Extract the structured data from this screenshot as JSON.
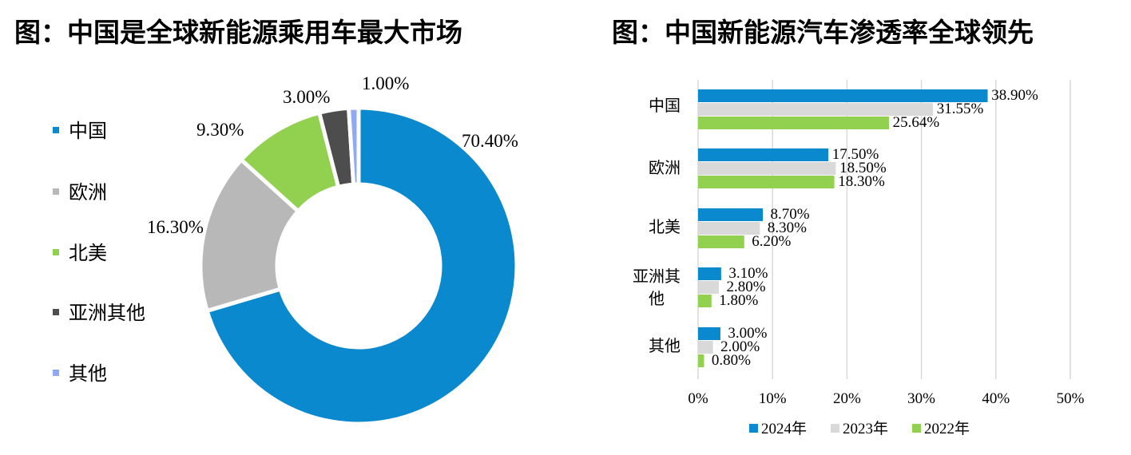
{
  "titles": {
    "left": "图：中国是全球新能源乘用车最大市场",
    "right": "图：中国新能源汽车渗透率全球领先"
  },
  "chart_data": [
    {
      "type": "pie",
      "variant": "donut",
      "title": "图：中国是全球新能源乘用车最大市场",
      "categories": [
        "中国",
        "欧洲",
        "北美",
        "亚洲其他",
        "其他"
      ],
      "values": [
        70.4,
        16.3,
        9.3,
        3.0,
        1.0
      ],
      "data_labels": [
        "70.40%",
        "16.30%",
        "9.30%",
        "3.00%",
        "1.00%"
      ],
      "colors": [
        "#0a89cf",
        "#b8b8b8",
        "#92d050",
        "#4d4d4d",
        "#8fa9f4"
      ],
      "legend": {
        "position": "left",
        "entries": [
          "中国",
          "欧洲",
          "北美",
          "亚洲其他",
          "其他"
        ]
      }
    },
    {
      "type": "bar",
      "orientation": "horizontal",
      "title": "图：中国新能源汽车渗透率全球领先",
      "categories": [
        "中国",
        "欧洲",
        "北美",
        "亚洲其他",
        "其他"
      ],
      "series": [
        {
          "name": "2024年",
          "color": "#0a89cf",
          "values": [
            38.9,
            17.5,
            8.7,
            3.1,
            3.0
          ],
          "labels": [
            "38.90%",
            "17.50%",
            "8.70%",
            "3.10%",
            "3.00%"
          ]
        },
        {
          "name": "2023年",
          "color": "#d9d9d9",
          "values": [
            31.55,
            18.5,
            8.3,
            2.8,
            2.0
          ],
          "labels": [
            "31.55%",
            "18.50%",
            "8.30%",
            "2.80%",
            "2.00%"
          ]
        },
        {
          "name": "2022年",
          "color": "#92d050",
          "values": [
            25.64,
            18.3,
            6.2,
            1.8,
            0.8
          ],
          "labels": [
            "25.64%",
            "18.30%",
            "6.20%",
            "1.80%",
            "0.80%"
          ]
        }
      ],
      "xlim": [
        0,
        50
      ],
      "x_ticks": [
        "0%",
        "10%",
        "20%",
        "30%",
        "40%",
        "50%"
      ],
      "grid": true,
      "legend": {
        "position": "bottom",
        "entries": [
          "2024年",
          "2023年",
          "2022年"
        ]
      }
    }
  ]
}
